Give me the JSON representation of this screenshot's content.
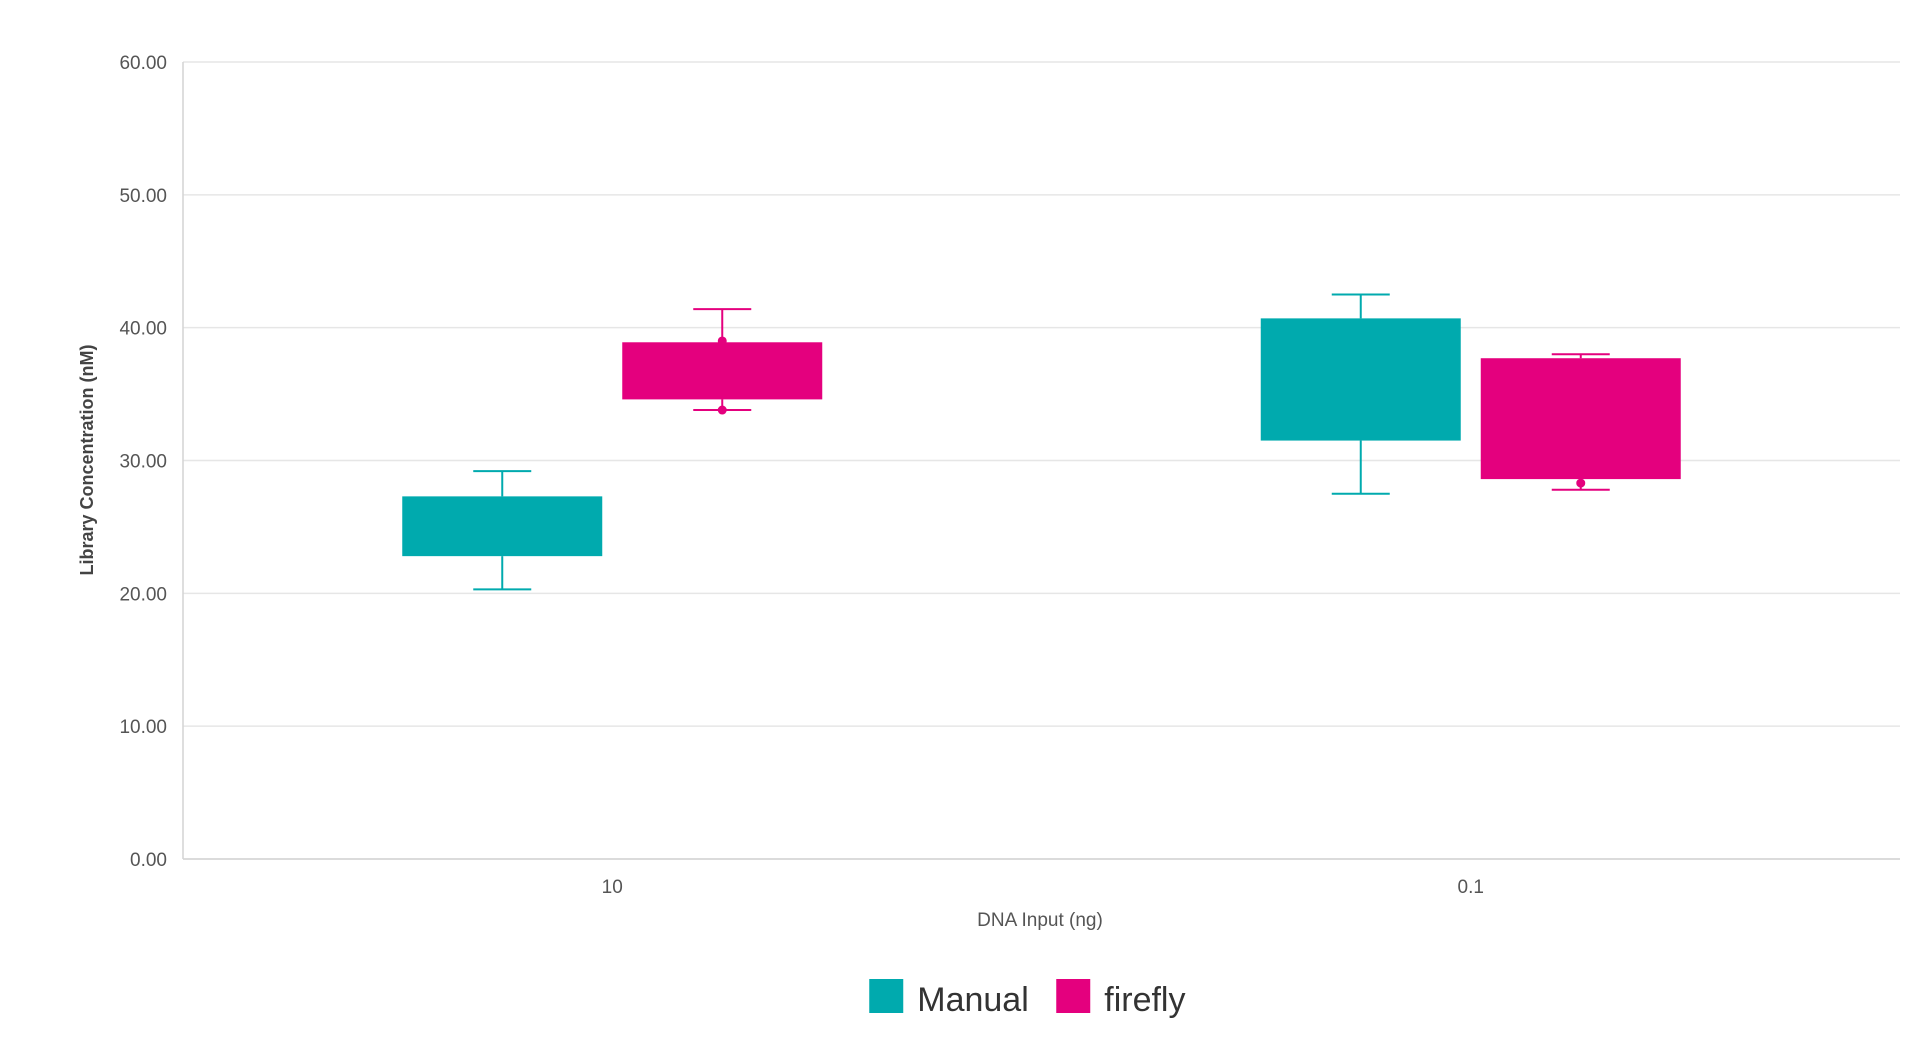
{
  "chart_data": {
    "type": "box",
    "xlabel": "DNA Input (ng)",
    "ylabel": "Library Concentration (nM)",
    "ylim": [
      0,
      60
    ],
    "yticks": [
      "0.00",
      "10.00",
      "20.00",
      "30.00",
      "40.00",
      "50.00",
      "60.00"
    ],
    "categories": [
      "10",
      "0.1"
    ],
    "grid": true,
    "legend_position": "bottom-center",
    "series": [
      {
        "name": "Manual",
        "color": "#00aaae",
        "boxes": [
          {
            "min": 20.3,
            "q1": 22.8,
            "q3": 27.3,
            "max": 29.2
          },
          {
            "min": 27.5,
            "q1": 31.5,
            "q3": 40.7,
            "max": 42.5
          }
        ]
      },
      {
        "name": "firefly",
        "color": "#e4007e",
        "boxes": [
          {
            "min": 33.8,
            "q1": 34.6,
            "q3": 38.9,
            "max": 41.4,
            "points": [
              33.8,
              39.0
            ]
          },
          {
            "min": 27.8,
            "q1": 28.6,
            "q3": 37.7,
            "max": 38.0,
            "points": [
              28.3
            ]
          }
        ]
      }
    ]
  }
}
